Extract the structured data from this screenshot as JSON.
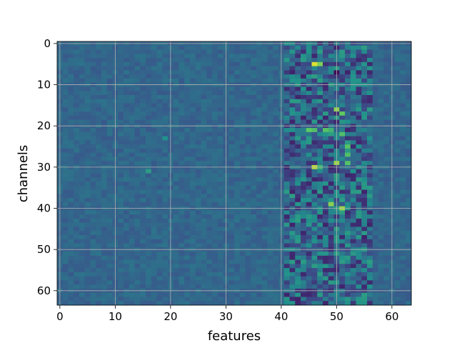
{
  "chart_data": {
    "type": "heatmap",
    "xlabel": "features",
    "ylabel": "channels",
    "rows": 64,
    "cols": 64,
    "xlim": [
      -0.5,
      63.5
    ],
    "ylim": [
      63.5,
      -0.5
    ],
    "x_ticks": [
      0,
      10,
      20,
      30,
      40,
      50,
      60
    ],
    "y_ticks": [
      0,
      10,
      20,
      30,
      40,
      50,
      60
    ],
    "grid": true,
    "colormap": "viridis",
    "colors": {
      "low": "#440154",
      "background": "#3b528b",
      "high": "#fde725",
      "grid": "#b0b0b0"
    },
    "description_pattern": {
      "baseline_value": 0.33,
      "active_feature_band": [
        41,
        56
      ],
      "peak_band_center": 49
    },
    "highlights": [
      {
        "row": 5,
        "col": 46,
        "value": 0.95
      },
      {
        "row": 5,
        "col": 47,
        "value": 0.8
      },
      {
        "row": 7,
        "col": 50,
        "value": 0.02
      },
      {
        "row": 16,
        "col": 50,
        "value": 0.82
      },
      {
        "row": 17,
        "col": 51,
        "value": 0.75
      },
      {
        "row": 21,
        "col": 45,
        "value": 0.75
      },
      {
        "row": 21,
        "col": 46,
        "value": 0.7
      },
      {
        "row": 21,
        "col": 48,
        "value": 0.72
      },
      {
        "row": 21,
        "col": 49,
        "value": 0.65
      },
      {
        "row": 22,
        "col": 51,
        "value": 0.7
      },
      {
        "row": 25,
        "col": 52,
        "value": 0.72
      },
      {
        "row": 27,
        "col": 52,
        "value": 0.7
      },
      {
        "row": 29,
        "col": 50,
        "value": 0.85
      },
      {
        "row": 29,
        "col": 52,
        "value": 0.72
      },
      {
        "row": 30,
        "col": 46,
        "value": 0.9
      },
      {
        "row": 30,
        "col": 47,
        "value": 0.65
      },
      {
        "row": 30,
        "col": 49,
        "value": 0.1
      },
      {
        "row": 39,
        "col": 49,
        "value": 0.82
      },
      {
        "row": 40,
        "col": 51,
        "value": 0.85
      },
      {
        "row": 31,
        "col": 16,
        "value": 0.55
      },
      {
        "row": 23,
        "col": 19,
        "value": 0.5
      }
    ]
  }
}
